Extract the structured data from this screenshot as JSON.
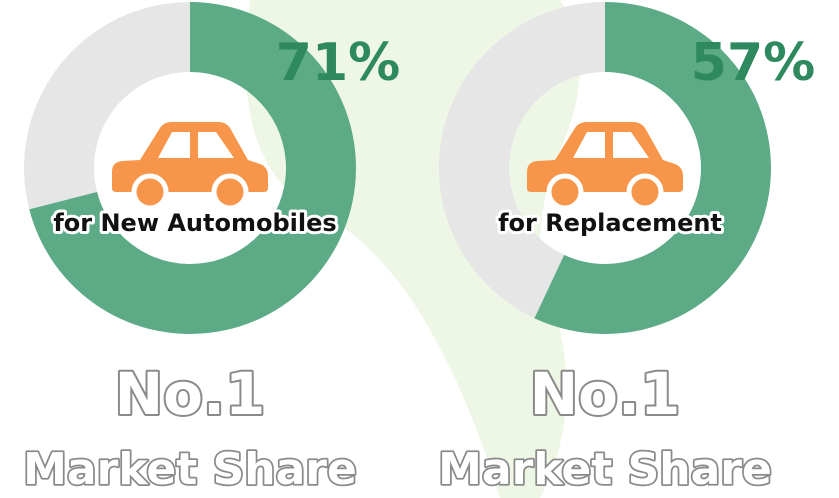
{
  "chart_data": [
    {
      "type": "donut",
      "label": "for New Automobiles",
      "values": [
        71,
        29
      ],
      "value_labels": [
        "71%",
        null
      ],
      "colors": [
        "#5dab86",
        "#e6e6e6"
      ],
      "caption": "No.1",
      "subcaption": "Market Share"
    },
    {
      "type": "donut",
      "label": "for Replacement",
      "values": [
        57,
        43
      ],
      "value_labels": [
        "57%",
        null
      ],
      "colors": [
        "#5dab86",
        "#e6e6e6"
      ],
      "caption": "No.1",
      "subcaption": "Market Share"
    }
  ]
}
